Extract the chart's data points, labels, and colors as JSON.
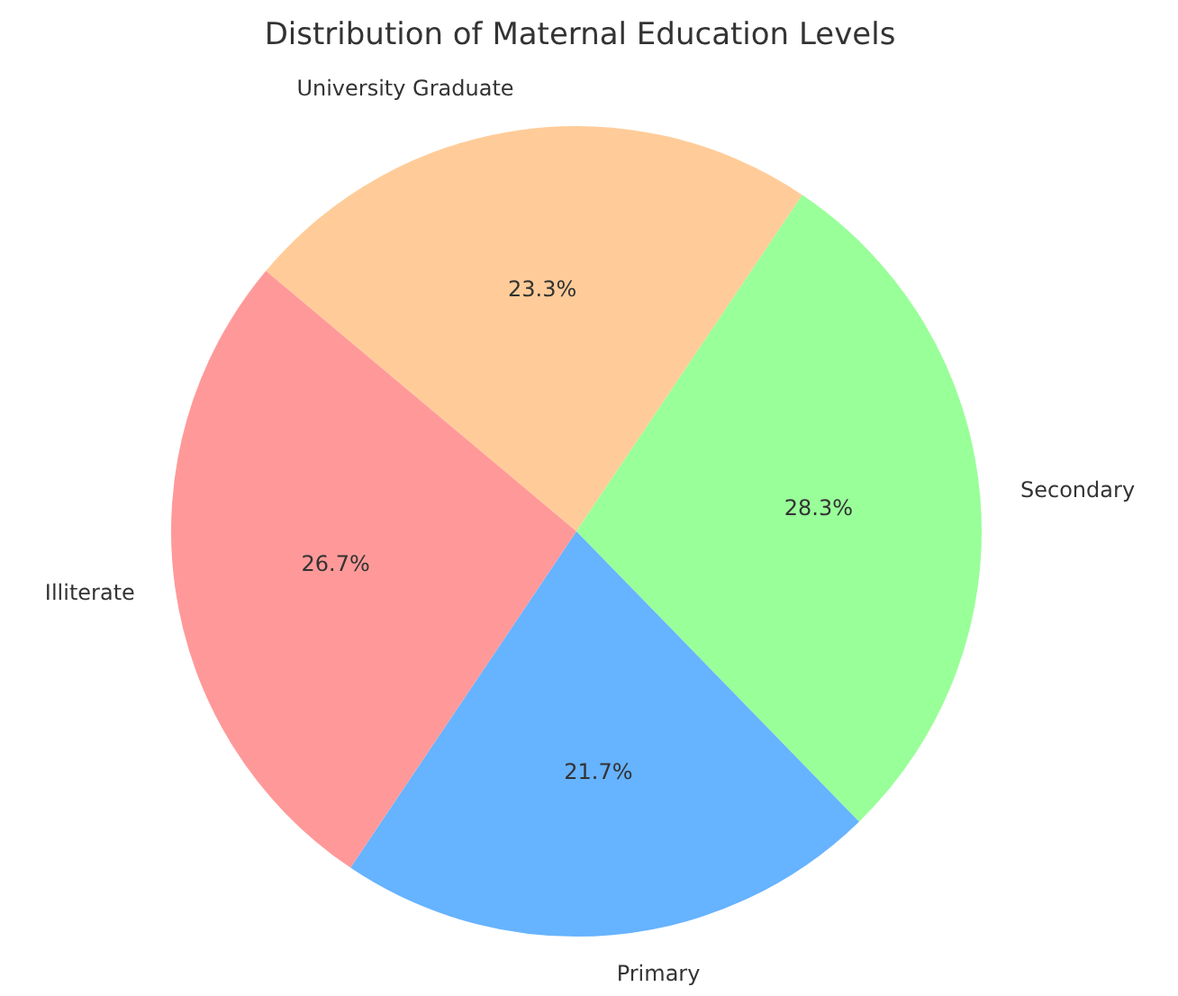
{
  "chart_data": {
    "type": "pie",
    "title": "Distribution of Maternal Education Levels",
    "categories": [
      "University Graduate",
      "Secondary",
      "Primary",
      "Illiterate"
    ],
    "values": [
      23.3,
      28.3,
      21.7,
      26.7
    ],
    "colors": [
      "#ffcc99",
      "#99ff99",
      "#66b3ff",
      "#ff9999"
    ],
    "value_labels": [
      "23.3%",
      "28.3%",
      "21.7%",
      "26.7%"
    ],
    "legend": false
  }
}
